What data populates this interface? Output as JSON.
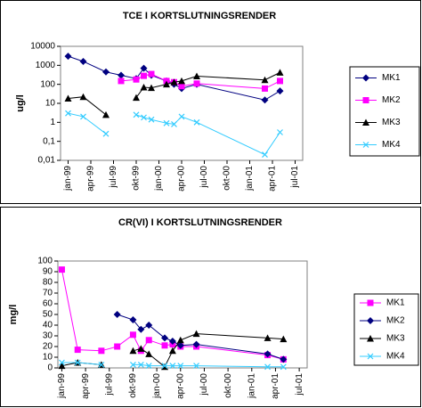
{
  "chart_data": [
    {
      "type": "line",
      "title": "TCE I KORTSLUTNINGSRENDER",
      "y_label": "ug/l",
      "log_scale": true,
      "x": [
        0,
        2,
        5,
        7,
        9,
        10,
        11,
        13,
        14,
        15,
        17,
        26,
        28
      ],
      "xlim": [
        -1,
        31
      ],
      "xticks": [
        {
          "value": 0,
          "label": "jan-99"
        },
        {
          "value": 3,
          "label": "apr-99"
        },
        {
          "value": 6,
          "label": "jul-99"
        },
        {
          "value": 9,
          "label": "okt-99"
        },
        {
          "value": 12,
          "label": "jan-00"
        },
        {
          "value": 15,
          "label": "apr-00"
        },
        {
          "value": 18,
          "label": "jul-00"
        },
        {
          "value": 21,
          "label": "okt-00"
        },
        {
          "value": 24,
          "label": "jan-01"
        },
        {
          "value": 27,
          "label": "apr-01"
        },
        {
          "value": 30,
          "label": "jul-01"
        }
      ],
      "ylim": [
        0.01,
        10000
      ],
      "yticks": [
        {
          "value": 0.01,
          "label": "0,01"
        },
        {
          "value": 0.1,
          "label": "0,1"
        },
        1,
        10,
        100,
        1000,
        10000
      ],
      "series": [
        {
          "name": "MK1",
          "color": "#000080",
          "marker": "diamond",
          "values": [
            3000,
            1600,
            450,
            300,
            200,
            700,
            300,
            150,
            100,
            60,
            100,
            15,
            45
          ]
        },
        {
          "name": "MK2",
          "color": "#ff00ff",
          "marker": "square",
          "values": [
            null,
            null,
            null,
            150,
            180,
            280,
            350,
            150,
            130,
            80,
            110,
            60,
            150
          ]
        },
        {
          "name": "MK3",
          "color": "#000000",
          "marker": "triangle",
          "values": [
            18,
            22,
            2.5,
            null,
            20,
            70,
            65,
            100,
            130,
            150,
            270,
            170,
            420
          ]
        },
        {
          "name": "MK4",
          "color": "#33ccff",
          "marker": "x",
          "values": [
            3,
            2,
            0.25,
            null,
            2.5,
            1.8,
            1.4,
            0.9,
            0.8,
            2,
            1,
            0.02,
            0.3
          ]
        }
      ]
    },
    {
      "type": "line",
      "title": "CR(VI) I KORTSLUTNINGSRENDER",
      "y_label": "mg/l",
      "log_scale": false,
      "x": [
        0,
        2,
        5,
        7,
        9,
        10,
        11,
        13,
        14,
        15,
        17,
        26,
        28
      ],
      "xlim": [
        -0.5,
        31
      ],
      "xticks": [
        {
          "value": 0,
          "label": "jan-99"
        },
        {
          "value": 3,
          "label": "apr-99"
        },
        {
          "value": 6,
          "label": "jul-99"
        },
        {
          "value": 9,
          "label": "okt-99"
        },
        {
          "value": 12,
          "label": "jan-00"
        },
        {
          "value": 15,
          "label": "apr-00"
        },
        {
          "value": 18,
          "label": "jul-00"
        },
        {
          "value": 21,
          "label": "okt-00"
        },
        {
          "value": 24,
          "label": "jan-01"
        },
        {
          "value": 27,
          "label": "apr-01"
        },
        {
          "value": 30,
          "label": "jul-01"
        }
      ],
      "ylim": [
        0,
        100
      ],
      "yticks": [
        0,
        10,
        20,
        30,
        40,
        50,
        60,
        70,
        80,
        90,
        100
      ],
      "series": [
        {
          "name": "MK1",
          "color": "#ff00ff",
          "marker": "square",
          "values": [
            92,
            17,
            16,
            20,
            31,
            16,
            26,
            21,
            22,
            20,
            20,
            12,
            8
          ]
        },
        {
          "name": "MK2",
          "color": "#000080",
          "marker": "diamond",
          "values": [
            null,
            null,
            null,
            50,
            45,
            36,
            40,
            28,
            25,
            21,
            22,
            13,
            8
          ]
        },
        {
          "name": "MK3",
          "color": "#000000",
          "marker": "triangle",
          "values": [
            2,
            5,
            3,
            null,
            16,
            18,
            13,
            1,
            16,
            26,
            32,
            28,
            27
          ]
        },
        {
          "name": "MK4",
          "color": "#33ccff",
          "marker": "x",
          "values": [
            5,
            5,
            3,
            null,
            3,
            3,
            2,
            2,
            2,
            2,
            2,
            1,
            1
          ]
        }
      ]
    }
  ]
}
